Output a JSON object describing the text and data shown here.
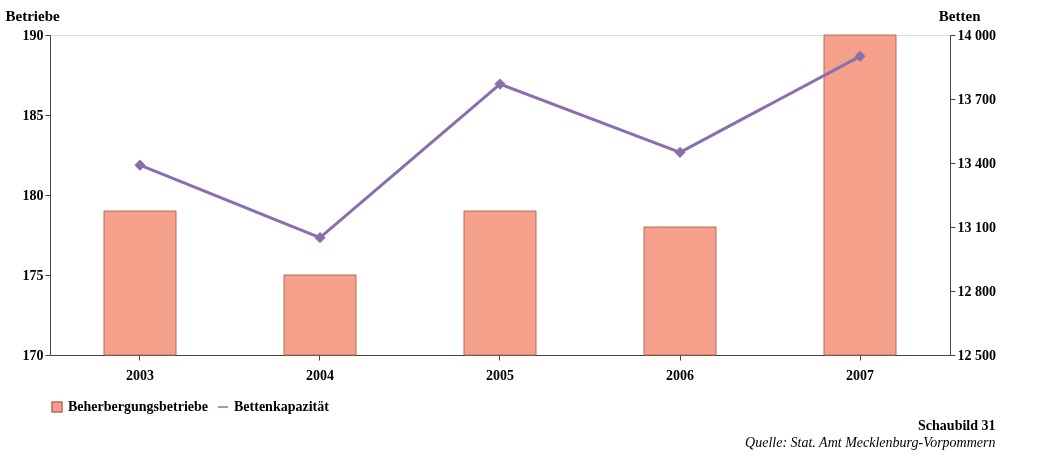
{
  "chart_data": {
    "type": "bar",
    "ylabel": "Betriebe",
    "y2label": "Betten",
    "categories": [
      "2003",
      "2004",
      "2005",
      "2006",
      "2007"
    ],
    "series": [
      {
        "name": "Beherbergungsbetriebe",
        "color": "#f4a08a",
        "values": [
          179,
          175,
          179,
          178,
          190
        ]
      },
      {
        "name": "Bettenkapazität",
        "type": "line",
        "axis": "y2",
        "color": "#8a6fad",
        "marker": "diamond",
        "values": [
          13390,
          13050,
          13770,
          13450,
          13900
        ]
      }
    ],
    "ylim": [
      170,
      190
    ],
    "yticks": [
      170,
      175,
      180,
      185,
      190
    ],
    "y2lim": [
      12500,
      14000
    ],
    "y2ticks": [
      {
        "value": 12500,
        "label": "12 500"
      },
      {
        "value": 12800,
        "label": "12 800"
      },
      {
        "value": 13100,
        "label": "13 100"
      },
      {
        "value": 13400,
        "label": "13 400"
      },
      {
        "value": 13700,
        "label": "13 700"
      },
      {
        "value": 14000,
        "label": "14 000"
      }
    ],
    "grid": false,
    "legend": "bottom",
    "annotations": [
      "Schaubild 31",
      "Quelle: Stat. Amt Mecklenburg-Vorpommern"
    ]
  }
}
